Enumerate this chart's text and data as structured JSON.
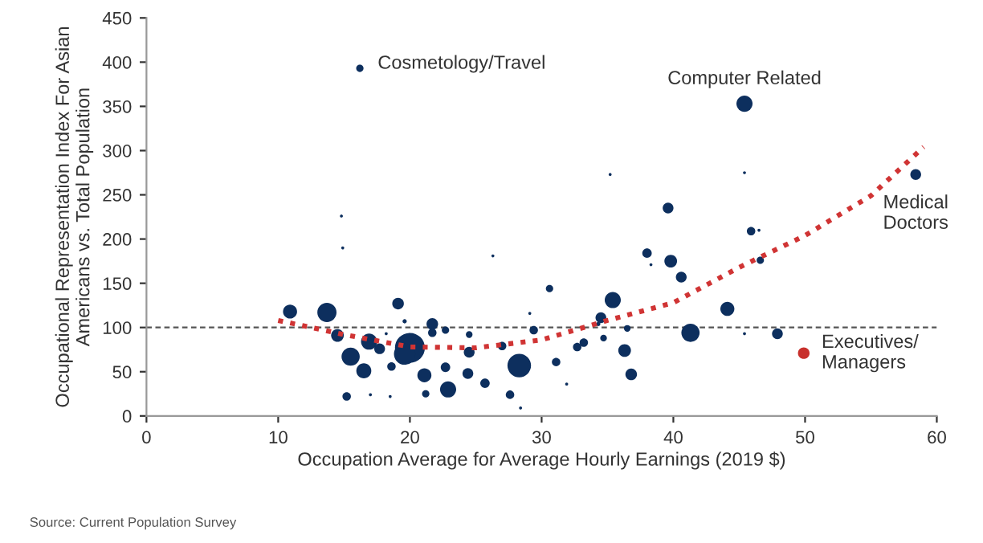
{
  "chart_data": {
    "type": "bubble",
    "xlabel": "Occupation Average for Average Hourly Earnings (2019 $)",
    "ylabel": "Occupational Representation Index For Asian\nAmericans vs. Total Population",
    "xlim": [
      0,
      60
    ],
    "xticks": [
      0,
      10,
      20,
      30,
      40,
      50,
      60
    ],
    "ylim": [
      0,
      450
    ],
    "yticks": [
      0,
      50,
      100,
      150,
      200,
      250,
      300,
      350,
      400,
      450
    ],
    "grid": false,
    "legend": false,
    "series": [
      {
        "color": "#0d2f5e",
        "x": [
          16.2,
          14.8,
          14.9,
          26.3,
          30.6,
          10.9,
          13.7,
          19.1,
          19.6,
          21.7,
          14.5,
          16.9,
          17.7,
          15.5,
          16.5,
          20.0,
          19.6,
          18.6,
          18.2,
          21.1,
          21.7,
          22.7,
          22.7,
          22.9,
          21.2,
          24.4,
          24.5,
          24.5,
          25.7,
          27.0,
          28.3,
          27.6,
          28.4,
          29.1,
          29.4,
          31.1,
          15.2,
          17.0,
          18.5,
          45.4,
          35.2,
          45.4,
          58.4,
          39.6,
          45.9,
          46.5,
          38.0,
          38.3,
          39.8,
          40.6,
          46.6,
          35.4,
          44.1,
          34.5,
          34.3,
          36.5,
          41.3,
          34.7,
          33.2,
          32.7,
          36.3,
          36.8,
          31.9,
          45.4,
          47.9
        ],
        "values": [
          393,
          226,
          190,
          181,
          144,
          118,
          117,
          127,
          107,
          104,
          91,
          84,
          76,
          67,
          51,
          77,
          70,
          56,
          93,
          46,
          94,
          97,
          55,
          30,
          25,
          48,
          72,
          92,
          37,
          79,
          57,
          24,
          9,
          116,
          97,
          61,
          22,
          24,
          22,
          353,
          273,
          275,
          273,
          235,
          209,
          210,
          184,
          171,
          175,
          157,
          176,
          131,
          121,
          111,
          104,
          99,
          94,
          88,
          83,
          78,
          74,
          47,
          36,
          93,
          93
        ],
        "sizes": [
          0.06,
          0.01,
          0.01,
          0.01,
          0.06,
          0.22,
          0.41,
          0.15,
          0.02,
          0.15,
          0.18,
          0.29,
          0.13,
          0.37,
          0.25,
          1,
          0.51,
          0.08,
          0.01,
          0.22,
          0.08,
          0.06,
          0.1,
          0.29,
          0.06,
          0.13,
          0.13,
          0.05,
          0.1,
          0.08,
          0.62,
          0.08,
          0.01,
          0.01,
          0.08,
          0.08,
          0.08,
          0.01,
          0.01,
          0.29,
          0.01,
          0.01,
          0.13,
          0.13,
          0.08,
          0.01,
          0.1,
          0.01,
          0.18,
          0.13,
          0.06,
          0.29,
          0.22,
          0.13,
          0.02,
          0.05,
          0.37,
          0.05,
          0.08,
          0.08,
          0.18,
          0.15,
          0.01,
          0.01,
          0.13
        ]
      },
      {
        "color": "#c8302c",
        "x": [
          49.9
        ],
        "values": [
          71
        ],
        "sizes": [
          0.15
        ]
      },
      {
        "type": "line",
        "color": "#d03434",
        "line_style": "dotted",
        "x": [
          10,
          15,
          20,
          25,
          30,
          35,
          40,
          45,
          50,
          55,
          59
        ],
        "values": [
          108,
          92,
          78,
          77,
          86,
          108,
          128,
          168,
          204,
          249,
          304
        ]
      }
    ],
    "ref_lines": [
      {
        "axis": "y",
        "value": 100,
        "color": "#555555",
        "line_style": "dashed"
      }
    ],
    "annotations": [
      {
        "text": "Cosmetology/Travel",
        "x": 16.2,
        "y": 393
      },
      {
        "text": "Computer Related",
        "x": 45.4,
        "y": 353
      },
      {
        "text": "Medical\nDoctors",
        "x": 58.4,
        "y": 273
      },
      {
        "text": "Executives/\nManagers",
        "x": 49.9,
        "y": 71
      },
      "Source: Current Population Survey"
    ]
  }
}
